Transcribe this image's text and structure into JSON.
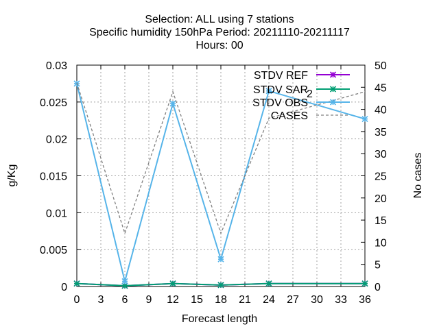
{
  "chart_data": {
    "type": "line",
    "title_lines": [
      "Selection: ALL using     7 stations",
      "Specific humidity 150hPa   Period: 20211110-20211117",
      "Hours:  00"
    ],
    "xlabel": "Forecast length",
    "ylabel": "g/Kg",
    "y2label": "No cases",
    "x": [
      0,
      6,
      12,
      18,
      24,
      36
    ],
    "xticks": [
      0,
      3,
      6,
      9,
      12,
      15,
      18,
      21,
      24,
      27,
      30,
      33,
      36
    ],
    "xlim": [
      0,
      36
    ],
    "ylim": [
      0,
      0.03
    ],
    "yticks": [
      0,
      0.005,
      0.01,
      0.015,
      0.02,
      0.025,
      0.03
    ],
    "ytick_labels": [
      "0",
      "0.005",
      "0.01",
      "0.015",
      "0.02",
      "0.025",
      "0.03"
    ],
    "y2lim": [
      0,
      50
    ],
    "y2ticks": [
      0,
      5,
      10,
      15,
      20,
      25,
      30,
      35,
      40,
      45,
      50
    ],
    "grid": true,
    "legend_position": "top-right",
    "series": [
      {
        "name": "STDV REF",
        "axis": "left",
        "color": "#9400d3",
        "marker": "x-star",
        "values": [
          0.0004,
          0.0001,
          0.0004,
          0.0002,
          0.0004,
          0.0004
        ]
      },
      {
        "name": "STDV SAR",
        "name_subscript": "2",
        "axis": "left",
        "color": "#009e73",
        "marker": "x-star",
        "values": [
          0.0004,
          0.0001,
          0.0004,
          0.0002,
          0.0004,
          0.0004
        ]
      },
      {
        "name": "STDV OBS",
        "axis": "left",
        "color": "#56b4e9",
        "marker": "x-star",
        "values": [
          0.0275,
          0.0007,
          0.0248,
          0.0037,
          0.0265,
          0.0227
        ]
      },
      {
        "name": "CASES",
        "axis": "right",
        "color": "#808080",
        "dashed": true,
        "values": [
          46,
          12,
          44,
          12,
          38,
          44
        ]
      }
    ]
  }
}
